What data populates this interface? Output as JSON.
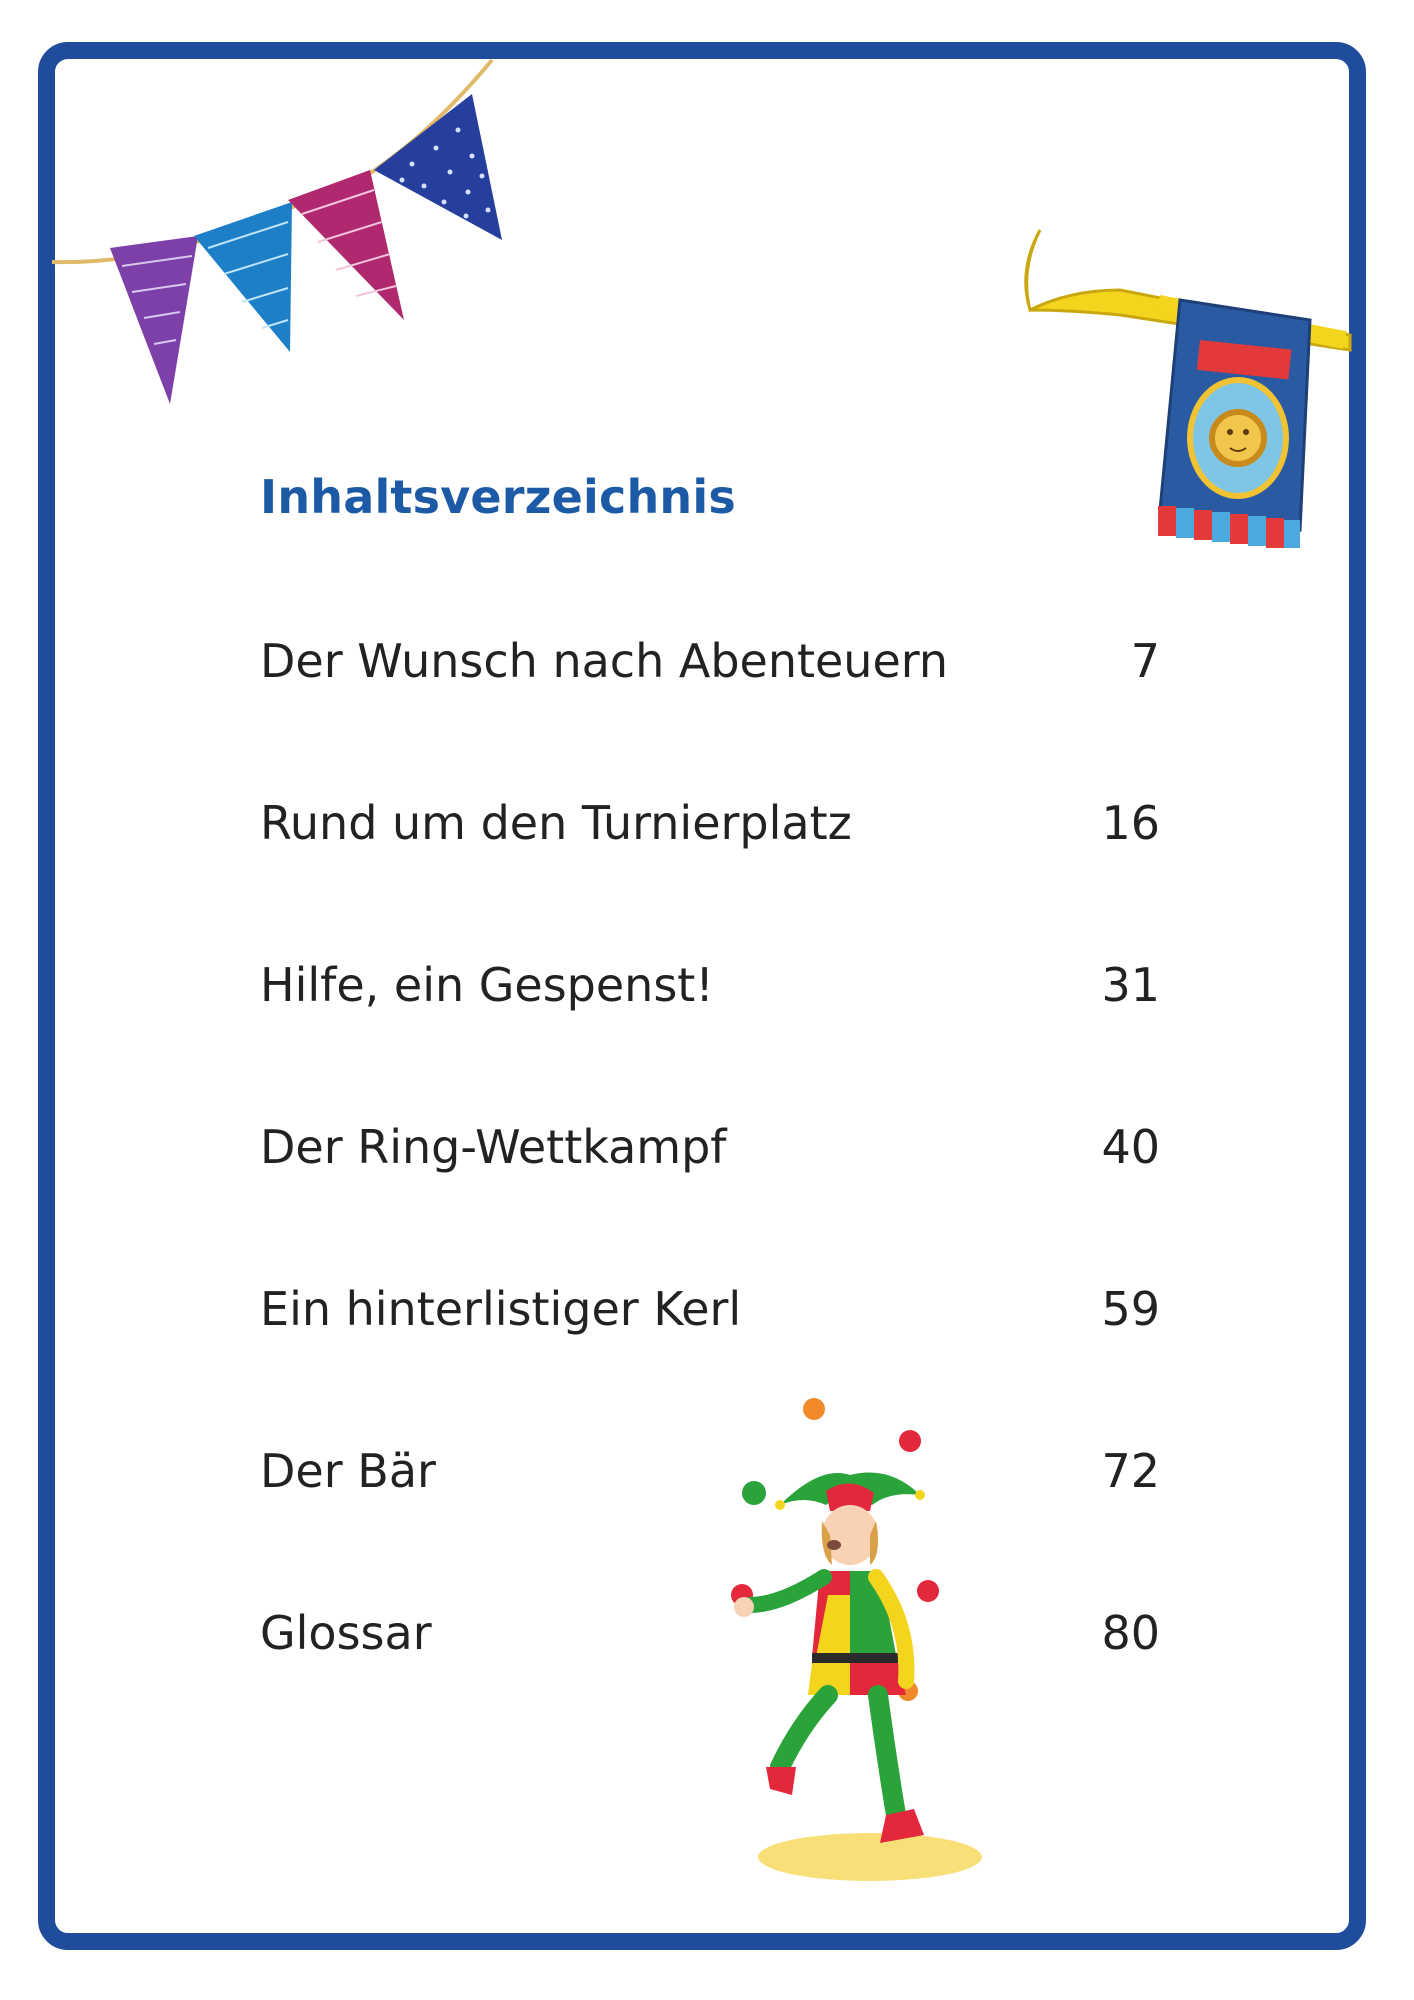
{
  "title": "Inhaltsverzeichnis",
  "entries": [
    {
      "label": "Der Wunsch nach Abenteuern",
      "page": "7"
    },
    {
      "label": "Rund um den Turnierplatz",
      "page": "16"
    },
    {
      "label": "Hilfe, ein Gespenst!",
      "page": "31"
    },
    {
      "label": "Der Ring-Wettkampf",
      "page": "40"
    },
    {
      "label": "Ein hinterlistiger Kerl",
      "page": "59"
    },
    {
      "label": "Der Bär",
      "page": "72"
    },
    {
      "label": "Glossar",
      "page": "80"
    }
  ],
  "colors": {
    "frame": "#1f4c9b",
    "title": "#1c5aa6",
    "text": "#222222"
  },
  "illustrations": {
    "bunting": "pennant-garland",
    "trumpet": "trumpet-with-lion-banner",
    "jester": "juggling-jester"
  }
}
